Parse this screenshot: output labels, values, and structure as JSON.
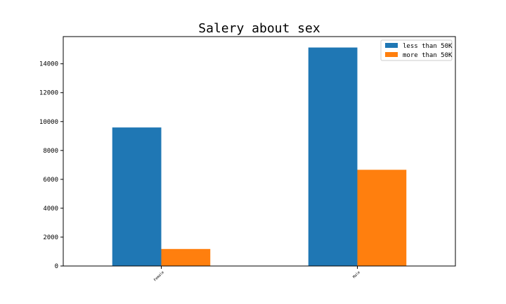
{
  "chart_data": {
    "type": "bar",
    "title": "Salery about sex",
    "categories": [
      "Female",
      "Male"
    ],
    "series": [
      {
        "name": "less than 50K",
        "values": [
          9592,
          15128
        ],
        "color": "#1f77b4"
      },
      {
        "name": "more than 50K",
        "values": [
          1179,
          6662
        ],
        "color": "#ff7f0e"
      }
    ],
    "xlabel": "",
    "ylabel": "",
    "ylim": [
      0,
      15884
    ],
    "yticks": [
      0,
      2000,
      4000,
      6000,
      8000,
      10000,
      12000,
      14000
    ],
    "grid": false,
    "legend_position": "top-right"
  }
}
